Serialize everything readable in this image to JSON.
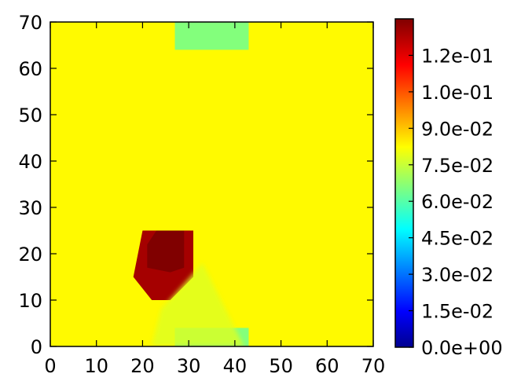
{
  "chart_data": {
    "type": "heatmap",
    "title": "",
    "xlabel": "",
    "ylabel": "",
    "xlim": [
      0,
      70
    ],
    "ylim": [
      0,
      70
    ],
    "x_ticks": [
      "0",
      "10",
      "20",
      "30",
      "40",
      "50",
      "60",
      "70"
    ],
    "y_ticks": [
      "0",
      "10",
      "20",
      "30",
      "40",
      "50",
      "60",
      "70"
    ],
    "colormap": "jet",
    "value_range": [
      0,
      0.135
    ],
    "colorbar_ticks": [
      {
        "value": 0.0,
        "label": "0.0e+00"
      },
      {
        "value": 0.015,
        "label": "1.5e-02"
      },
      {
        "value": 0.03,
        "label": "3.0e-02"
      },
      {
        "value": 0.045,
        "label": "4.5e-02"
      },
      {
        "value": 0.06,
        "label": "6.0e-02"
      },
      {
        "value": 0.075,
        "label": "7.5e-02"
      },
      {
        "value": 0.09,
        "label": "9.0e-02"
      },
      {
        "value": 0.105,
        "label": "1.0e-01"
      },
      {
        "value": 0.12,
        "label": "1.2e-01"
      }
    ],
    "background_value": 0.085,
    "regions": [
      {
        "shape": "rect",
        "x": [
          27,
          43
        ],
        "y": [
          64,
          70
        ],
        "value": 0.068
      },
      {
        "shape": "rect",
        "x": [
          27,
          43
        ],
        "y": [
          0,
          4
        ],
        "value": 0.068
      },
      {
        "shape": "polygon",
        "points": [
          [
            20,
            25
          ],
          [
            31,
            25
          ],
          [
            31,
            15
          ],
          [
            26,
            10
          ],
          [
            22,
            10
          ],
          [
            18,
            15
          ]
        ],
        "value": 0.13
      },
      {
        "shape": "polygon",
        "points": [
          [
            23,
            25
          ],
          [
            29,
            25
          ],
          [
            29,
            17
          ],
          [
            26,
            16
          ],
          [
            21,
            17
          ],
          [
            21,
            22
          ]
        ],
        "value": 0.135
      },
      {
        "shape": "polygon",
        "points": [
          [
            24,
            8
          ],
          [
            33,
            18
          ],
          [
            42,
            0
          ],
          [
            22,
            0
          ]
        ],
        "value": 0.08
      }
    ]
  }
}
